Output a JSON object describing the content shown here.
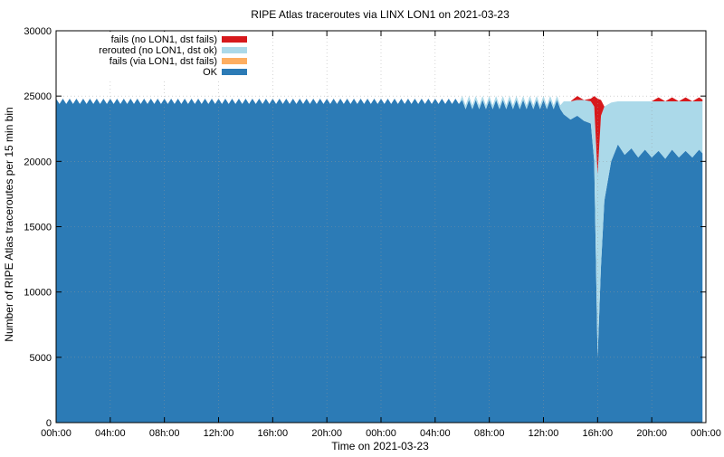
{
  "chart_data": {
    "type": "area",
    "title": "RIPE Atlas traceroutes via LINX LON1 on 2021-03-23",
    "xlabel": "Time on 2021-03-23",
    "ylabel": "Number of RIPE Atlas traceroutes per 15 min bin",
    "xlim_hours": [
      0,
      48
    ],
    "ylim": [
      0,
      30000
    ],
    "x_ticks": [
      {
        "hour": 0,
        "label": "00h:00"
      },
      {
        "hour": 4,
        "label": "04h:00"
      },
      {
        "hour": 8,
        "label": "08h:00"
      },
      {
        "hour": 12,
        "label": "12h:00"
      },
      {
        "hour": 16,
        "label": "16h:00"
      },
      {
        "hour": 20,
        "label": "20h:00"
      },
      {
        "hour": 24,
        "label": "00h:00"
      },
      {
        "hour": 28,
        "label": "04h:00"
      },
      {
        "hour": 32,
        "label": "08h:00"
      },
      {
        "hour": 36,
        "label": "12h:00"
      },
      {
        "hour": 40,
        "label": "16h:00"
      },
      {
        "hour": 44,
        "label": "20h:00"
      },
      {
        "hour": 48,
        "label": "00h:00"
      }
    ],
    "y_ticks": [
      0,
      5000,
      10000,
      15000,
      20000,
      25000,
      30000
    ],
    "grid": true,
    "stacked": true,
    "legend_position": "top-left",
    "legend": [
      {
        "label": "fails (no LON1, dst fails)",
        "color": "#d7191c",
        "series": "fails_no_lon1"
      },
      {
        "label": "rerouted (no LON1, dst ok)",
        "color": "#abd9e9",
        "series": "rerouted"
      },
      {
        "label": "fails (via LON1, dst fails)",
        "color": "#fdae61",
        "series": "fails_via_lon1"
      },
      {
        "label": "OK",
        "color": "#2c7bb6",
        "series": "ok"
      }
    ],
    "series_segments": {
      "ok": [
        {
          "from": 0,
          "to": 30,
          "pattern": "sawtooth",
          "high": 24800,
          "low": 24400
        },
        {
          "from": 30,
          "to": 37.5,
          "pattern": "sawtooth",
          "high": 24700,
          "low": 24000
        },
        {
          "points": [
            [
              37.5,
              23600
            ],
            [
              38,
              23200
            ],
            [
              38.5,
              23500
            ],
            [
              39,
              23100
            ],
            [
              39.5,
              22900
            ],
            [
              39.75,
              20000
            ],
            [
              40,
              5000
            ],
            [
              40.25,
              12000
            ],
            [
              40.5,
              17000
            ],
            [
              41,
              20000
            ],
            [
              41.5,
              21300
            ],
            [
              42,
              20500
            ],
            [
              42.5,
              21000
            ],
            [
              43,
              20300
            ],
            [
              43.5,
              20900
            ],
            [
              44,
              20300
            ],
            [
              44.5,
              20800
            ],
            [
              45,
              20200
            ],
            [
              45.5,
              20900
            ],
            [
              46,
              20300
            ],
            [
              46.5,
              20800
            ],
            [
              47,
              20300
            ],
            [
              47.5,
              20900
            ],
            [
              47.85,
              20500
            ],
            [
              47.95,
              20500
            ]
          ]
        }
      ],
      "rerouted": [
        {
          "from": 0,
          "to": 30,
          "value": 0
        },
        {
          "from": 30,
          "to": 37.5,
          "value": 300
        },
        {
          "points": [
            [
              37.5,
              1000
            ],
            [
              38,
              1400
            ],
            [
              38.5,
              1200
            ],
            [
              39,
              1600
            ],
            [
              39.5,
              1700
            ],
            [
              39.75,
              4200
            ],
            [
              40,
              14000
            ],
            [
              40.25,
              11500
            ],
            [
              40.5,
              7200
            ],
            [
              41,
              4500
            ],
            [
              41.5,
              3300
            ],
            [
              42,
              4100
            ],
            [
              42.5,
              3600
            ],
            [
              43,
              4300
            ],
            [
              43.5,
              3700
            ],
            [
              44,
              4300
            ],
            [
              44.5,
              3800
            ],
            [
              45,
              4400
            ],
            [
              45.5,
              3700
            ],
            [
              46,
              4300
            ],
            [
              46.5,
              3800
            ],
            [
              47,
              4300
            ],
            [
              47.5,
              3700
            ],
            [
              47.85,
              4100
            ],
            [
              47.95,
              4100
            ]
          ]
        }
      ],
      "fails_no_lon1": [
        {
          "points": [
            [
              0,
              0
            ],
            [
              38,
              0
            ],
            [
              38.5,
              300
            ],
            [
              39,
              0
            ],
            [
              39.5,
              200
            ],
            [
              39.75,
              800
            ],
            [
              40,
              5800
            ],
            [
              40.25,
              1200
            ],
            [
              40.5,
              0
            ],
            [
              44,
              0
            ],
            [
              44.5,
              300
            ],
            [
              45,
              0
            ],
            [
              45.5,
              300
            ],
            [
              46,
              0
            ],
            [
              46.5,
              300
            ],
            [
              47,
              0
            ],
            [
              47.5,
              300
            ],
            [
              47.95,
              0
            ]
          ]
        }
      ],
      "fails_via_lon1": [
        {
          "from": 0,
          "to": 48,
          "value": 0
        }
      ]
    }
  }
}
